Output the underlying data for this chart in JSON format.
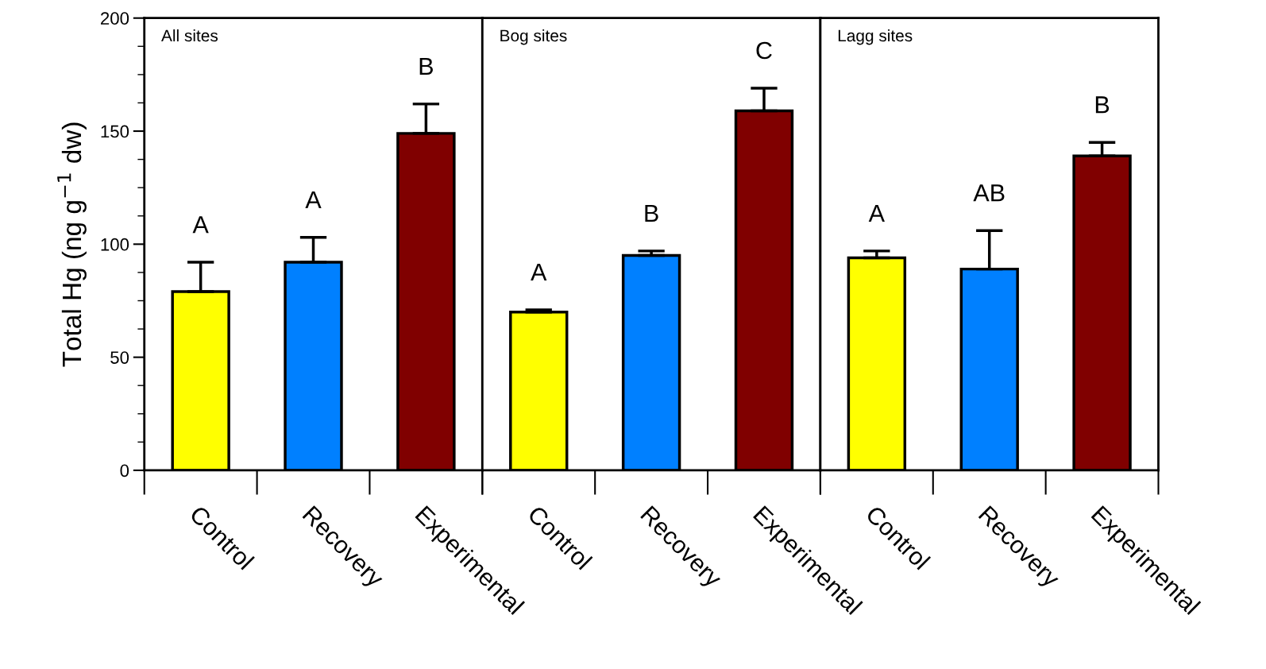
{
  "chart_data": [
    {
      "type": "bar",
      "title": "All sites",
      "ylabel": "Total Hg (ng g$^{−1}$ dw)",
      "categories": [
        "Control",
        "Recovery",
        "Experimental"
      ],
      "values": [
        79,
        92,
        149
      ],
      "colors": [
        "#ffff00",
        "#0080ff",
        "#800000"
      ],
      "errors": [
        [
          79,
          92
        ],
        [
          92,
          103
        ],
        [
          149,
          162
        ]
      ],
      "ylim": [
        0,
        200
      ],
      "yticks": [
        0,
        50,
        100,
        150,
        200
      ],
      "annotations": [
        "A",
        "A",
        "B"
      ]
    },
    {
      "type": "bar",
      "title": "Bog sites",
      "categories": [
        "Control",
        "Recovery",
        "Experimental"
      ],
      "values": [
        70,
        95,
        159
      ],
      "colors": [
        "#ffff00",
        "#0080ff",
        "#800000"
      ],
      "errors": [
        [
          70,
          71
        ],
        [
          95,
          97
        ],
        [
          159,
          169
        ]
      ],
      "ylim": [
        0,
        200
      ],
      "yticks": [
        0,
        50,
        100,
        150,
        200
      ],
      "tick_labels": "x",
      "annotations": [
        "A",
        "B",
        "C"
      ]
    },
    {
      "type": "bar",
      "title": "Lagg sites",
      "categories": [
        "Control",
        "Recovery",
        "Experimental"
      ],
      "values": [
        94,
        89,
        139
      ],
      "colors": [
        "#ffff00",
        "#0080ff",
        "#800000"
      ],
      "errors": [
        [
          94,
          97
        ],
        [
          89,
          106
        ],
        [
          139,
          145
        ]
      ],
      "ylim": [
        0,
        200
      ],
      "yticks": [
        0,
        50,
        100,
        150,
        200
      ],
      "tick_labels": "x",
      "annotations": [
        "A",
        "AB",
        "B"
      ]
    }
  ]
}
